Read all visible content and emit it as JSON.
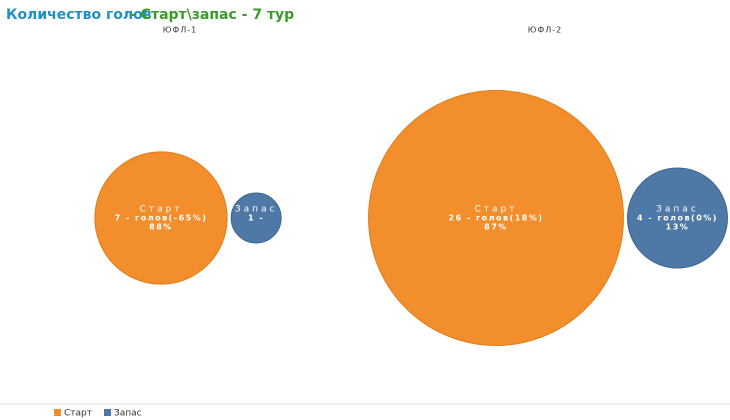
{
  "chart_data": {
    "type": "bubble",
    "title": "Количество голов",
    "subtitle": "- Старт\\запас - 7 тур",
    "series": [
      {
        "name": "Старт",
        "color": "#f28e2b"
      },
      {
        "name": "Запас",
        "color": "#4e79a7"
      }
    ],
    "panels": [
      {
        "title": "ЮФЛ-1",
        "values": [
          7,
          1
        ],
        "value_labels": [
          "7 - голов(-65%)",
          "1 -"
        ],
        "shares": [
          88,
          null
        ],
        "share_labels": [
          "88%",
          null
        ]
      },
      {
        "title": "ЮФЛ-2",
        "values": [
          26,
          4
        ],
        "value_labels": [
          "26 - голов(18%)",
          "4 - голов(0%)"
        ],
        "shares": [
          87,
          13
        ],
        "share_labels": [
          "87%",
          "13%"
        ]
      }
    ]
  }
}
